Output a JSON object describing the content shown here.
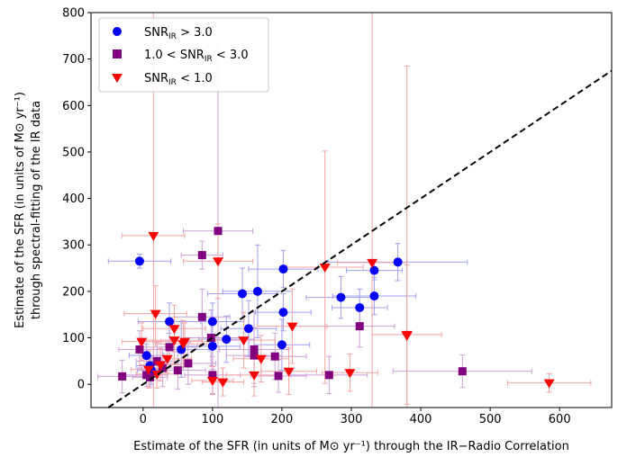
{
  "chart_data": {
    "type": "scatter",
    "x_label": "Estimate of the SFR (in units of M⊙ yr⁻¹) through the IR−Radio Correlation",
    "y_label_line1": "Estimate of the SFR (in units of M⊙ yr⁻¹)",
    "y_label_line2": "through spectral-fitting of the IR data",
    "xlim": [
      -75,
      675
    ],
    "ylim": [
      -50,
      800
    ],
    "x_ticks": [
      0,
      100,
      200,
      300,
      400,
      500,
      600
    ],
    "y_ticks": [
      0,
      100,
      200,
      300,
      400,
      500,
      600,
      700,
      800
    ],
    "reference_line": {
      "style": "dashed",
      "color": "#000000",
      "relation": "y = x"
    },
    "legend_position": "top-left",
    "series": [
      {
        "name": "SNR_IR > 3.0",
        "legend_label": "SNRIR > 3.0",
        "marker": "circle",
        "color": "#0000ff",
        "error_color": "#9f9ff5",
        "points": [
          {
            "x": -5,
            "y": 265,
            "xerr": 45,
            "yerr": 15
          },
          {
            "x": 5,
            "y": 62,
            "xerr": 25,
            "yerr": 25
          },
          {
            "x": 10,
            "y": 40,
            "xerr": 20,
            "yerr": 20
          },
          {
            "x": 12,
            "y": 30,
            "xerr": 20,
            "yerr": 30
          },
          {
            "x": 38,
            "y": 135,
            "xerr": 45,
            "yerr": 40
          },
          {
            "x": 55,
            "y": 75,
            "xerr": 40,
            "yerr": 60
          },
          {
            "x": 100,
            "y": 135,
            "xerr": 45,
            "yerr": 40
          },
          {
            "x": 100,
            "y": 82,
            "xerr": 40,
            "yerr": 50
          },
          {
            "x": 120,
            "y": 97,
            "xerr": 40,
            "yerr": 50
          },
          {
            "x": 143,
            "y": 195,
            "xerr": 50,
            "yerr": 55
          },
          {
            "x": 152,
            "y": 120,
            "xerr": 40,
            "yerr": 60
          },
          {
            "x": 165,
            "y": 200,
            "xerr": 50,
            "yerr": 100
          },
          {
            "x": 202,
            "y": 248,
            "xerr": 50,
            "yerr": 40
          },
          {
            "x": 202,
            "y": 155,
            "xerr": 40,
            "yerr": 40
          },
          {
            "x": 200,
            "y": 85,
            "xerr": 40,
            "yerr": 55
          },
          {
            "x": 285,
            "y": 187,
            "xerr": 50,
            "yerr": 45
          },
          {
            "x": 312,
            "y": 165,
            "xerr": 40,
            "yerr": 40
          },
          {
            "x": 333,
            "y": 245,
            "xerr": 40,
            "yerr": 20
          },
          {
            "x": 333,
            "y": 190,
            "xerr": 60,
            "yerr": 40
          },
          {
            "x": 367,
            "y": 263,
            "xerr": 100,
            "yerr": 40
          }
        ]
      },
      {
        "name": "1.0 < SNR_IR < 3.0",
        "legend_label": "1.0 < SNRIR < 3.0",
        "marker": "square",
        "color": "#800080",
        "error_color": "#cc9fd6",
        "points": [
          {
            "x": -30,
            "y": 17,
            "xerr": 35,
            "yerr": 35
          },
          {
            "x": -5,
            "y": 75,
            "xerr": 30,
            "yerr": 40
          },
          {
            "x": 5,
            "y": 20,
            "xerr": 30,
            "yerr": 25
          },
          {
            "x": 10,
            "y": 15,
            "xerr": 25,
            "yerr": 20
          },
          {
            "x": 20,
            "y": 50,
            "xerr": 30,
            "yerr": 40
          },
          {
            "x": 28,
            "y": 35,
            "xerr": 30,
            "yerr": 40
          },
          {
            "x": 38,
            "y": 80,
            "xerr": 40,
            "yerr": 30
          },
          {
            "x": 50,
            "y": 30,
            "xerr": 40,
            "yerr": 40
          },
          {
            "x": 65,
            "y": 45,
            "xerr": 40,
            "yerr": 45
          },
          {
            "x": 85,
            "y": 278,
            "xerr": 30,
            "yerr": 30
          },
          {
            "x": 85,
            "y": 145,
            "xerr": 40,
            "yerr": 60
          },
          {
            "x": 98,
            "y": 100,
            "xerr": 40,
            "yerr": 60
          },
          {
            "x": 100,
            "y": 20,
            "xerr": 40,
            "yerr": 40
          },
          {
            "x": 108,
            "y": 330,
            "xerr": 50,
            "yerr": 400
          },
          {
            "x": 160,
            "y": 75,
            "xerr": 50,
            "yerr": 80
          },
          {
            "x": 160,
            "y": 62,
            "xerr": 40,
            "yerr": 60
          },
          {
            "x": 190,
            "y": 60,
            "xerr": 45,
            "yerr": 50
          },
          {
            "x": 195,
            "y": 18,
            "xerr": 40,
            "yerr": 35
          },
          {
            "x": 268,
            "y": 20,
            "xerr": 55,
            "yerr": 40
          },
          {
            "x": 312,
            "y": 125,
            "xerr": 50,
            "yerr": 45
          },
          {
            "x": 460,
            "y": 28,
            "xerr": 100,
            "yerr": 35
          }
        ]
      },
      {
        "name": "SNR_IR < 1.0",
        "legend_label": "SNRIR < 1.0",
        "marker": "triangle-down",
        "color": "#ff0000",
        "error_color": "#f5a3a3",
        "points": [
          {
            "x": -2,
            "y": 92,
            "xerr": 28,
            "yerr": 40
          },
          {
            "x": 8,
            "y": 32,
            "xerr": 25,
            "yerr": 40
          },
          {
            "x": 15,
            "y": 320,
            "xerr": 45,
            "yerr": 600
          },
          {
            "x": 18,
            "y": 152,
            "xerr": 45,
            "yerr": 60
          },
          {
            "x": 20,
            "y": 22,
            "xerr": 30,
            "yerr": 30
          },
          {
            "x": 25,
            "y": 42,
            "xerr": 30,
            "yerr": 35
          },
          {
            "x": 35,
            "y": 55,
            "xerr": 35,
            "yerr": 30
          },
          {
            "x": 45,
            "y": 95,
            "xerr": 40,
            "yerr": 50
          },
          {
            "x": 45,
            "y": 120,
            "xerr": 45,
            "yerr": 50
          },
          {
            "x": 58,
            "y": 87,
            "xerr": 40,
            "yerr": 50
          },
          {
            "x": 60,
            "y": 92,
            "xerr": 45,
            "yerr": 40
          },
          {
            "x": 100,
            "y": 8,
            "xerr": 30,
            "yerr": 30
          },
          {
            "x": 108,
            "y": 265,
            "xerr": 50,
            "yerr": 80
          },
          {
            "x": 115,
            "y": 5,
            "xerr": 30,
            "yerr": 30
          },
          {
            "x": 145,
            "y": 95,
            "xerr": 45,
            "yerr": 60
          },
          {
            "x": 160,
            "y": 20,
            "xerr": 40,
            "yerr": 45
          },
          {
            "x": 170,
            "y": 55,
            "xerr": 40,
            "yerr": 50
          },
          {
            "x": 210,
            "y": 28,
            "xerr": 40,
            "yerr": 50
          },
          {
            "x": 215,
            "y": 125,
            "xerr": 50,
            "yerr": 80
          },
          {
            "x": 262,
            "y": 252,
            "xerr": 55,
            "yerr": 250
          },
          {
            "x": 298,
            "y": 25,
            "xerr": 40,
            "yerr": 40
          },
          {
            "x": 330,
            "y": 262,
            "xerr": 50,
            "yerr": 550
          },
          {
            "x": 380,
            "y": 107,
            "xerr": 50,
            "yerr": 150
          },
          {
            "x": 380,
            "y": 105,
            "xerr": 0,
            "yerr": 580
          },
          {
            "x": 585,
            "y": 3,
            "xerr": 60,
            "yerr": 20
          }
        ]
      }
    ]
  }
}
